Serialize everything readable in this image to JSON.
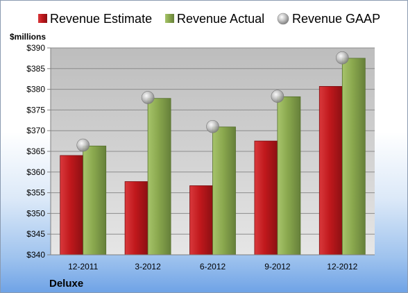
{
  "chart_data": {
    "type": "bar",
    "categories": [
      "12-2011",
      "3-2012",
      "6-2012",
      "9-2012",
      "12-2012"
    ],
    "series": [
      {
        "name": "Revenue Estimate",
        "kind": "bar",
        "values": [
          364.0,
          357.7,
          356.7,
          367.5,
          380.7
        ]
      },
      {
        "name": "Revenue Actual",
        "kind": "bar",
        "values": [
          366.3,
          377.8,
          370.9,
          378.2,
          387.5
        ]
      },
      {
        "name": "Revenue GAAP",
        "kind": "marker",
        "values": [
          366.5,
          378.0,
          371.0,
          378.3,
          387.6
        ]
      }
    ],
    "ylabel": "$millions",
    "ylim": [
      340,
      390
    ],
    "yticks": [
      340,
      345,
      350,
      355,
      360,
      365,
      370,
      375,
      380,
      385,
      390
    ],
    "ytick_labels": [
      "$340",
      "$345",
      "$350",
      "$355",
      "$360",
      "$365",
      "$370",
      "$375",
      "$380",
      "$385",
      "$390"
    ],
    "grid": true,
    "legend_position": "top",
    "company": "Deluxe",
    "colors": {
      "estimate": "#c0181c",
      "actual": "#8aa84e",
      "gaap": "#b8b8b8"
    }
  }
}
